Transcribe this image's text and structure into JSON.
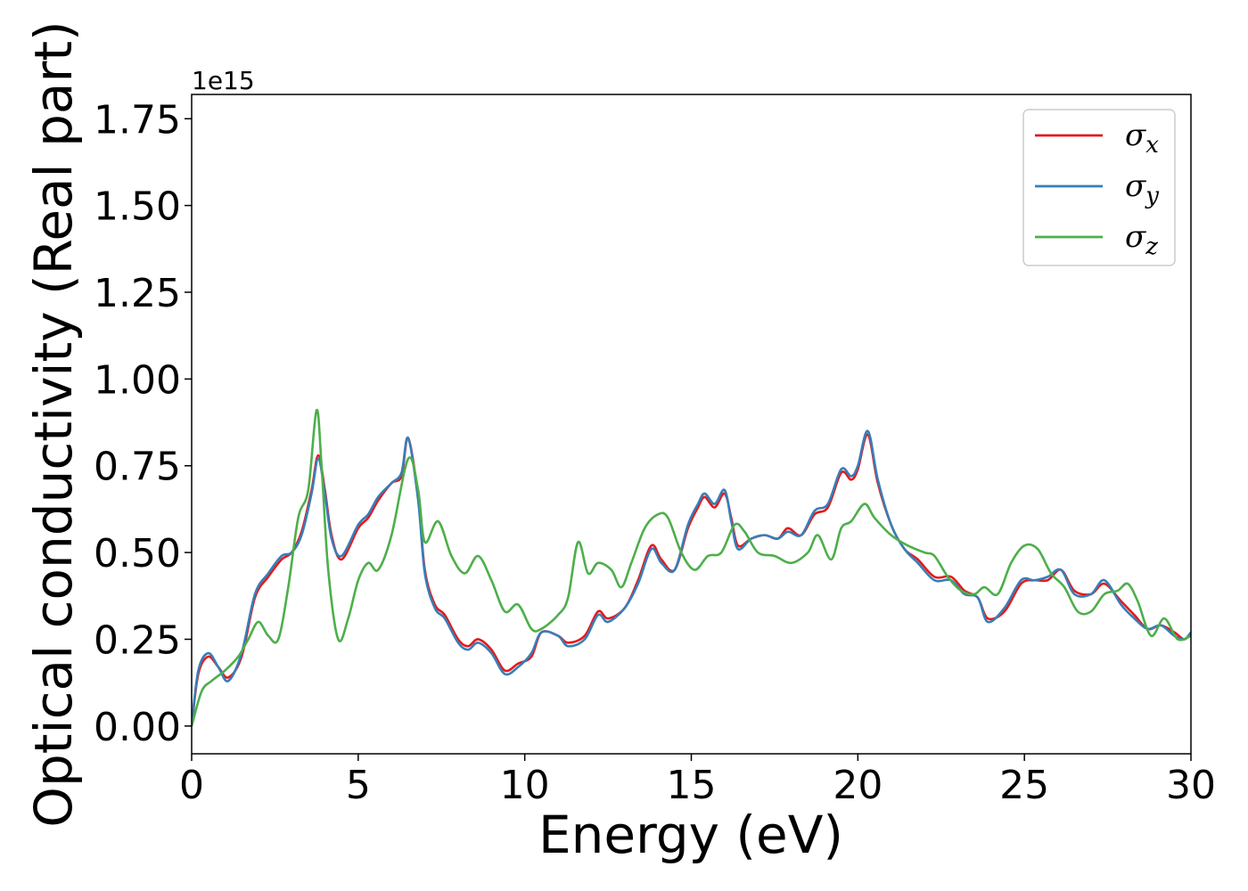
{
  "chart_data": {
    "type": "line",
    "xlabel": "Energy (eV)",
    "ylabel": "Optical conductivity (Real part)",
    "y_offset_label": "1e15",
    "xlim": [
      0,
      30
    ],
    "ylim": [
      -0.08,
      1.82
    ],
    "xticks": [
      0,
      5,
      10,
      15,
      20,
      25,
      30
    ],
    "xtick_labels": [
      "0",
      "5",
      "10",
      "15",
      "20",
      "25",
      "30"
    ],
    "yticks": [
      0.0,
      0.25,
      0.5,
      0.75,
      1.0,
      1.25,
      1.5,
      1.75
    ],
    "ytick_labels": [
      "0.00",
      "0.25",
      "0.50",
      "0.75",
      "1.00",
      "1.25",
      "1.50",
      "1.75"
    ],
    "grid": false,
    "legend_position": "top-right",
    "series": [
      {
        "name": "σx",
        "legend_base": "σ",
        "legend_sub": "x",
        "color": "#e41a1c",
        "points": [
          [
            0,
            0
          ],
          [
            0.2,
            0.15
          ],
          [
            0.5,
            0.2
          ],
          [
            0.8,
            0.17
          ],
          [
            1.1,
            0.14
          ],
          [
            1.5,
            0.2
          ],
          [
            1.9,
            0.37
          ],
          [
            2.3,
            0.43
          ],
          [
            2.7,
            0.48
          ],
          [
            3.0,
            0.5
          ],
          [
            3.3,
            0.56
          ],
          [
            3.6,
            0.68
          ],
          [
            3.8,
            0.78
          ],
          [
            4.0,
            0.68
          ],
          [
            4.2,
            0.55
          ],
          [
            4.5,
            0.48
          ],
          [
            5.0,
            0.57
          ],
          [
            5.3,
            0.6
          ],
          [
            5.6,
            0.65
          ],
          [
            6.0,
            0.7
          ],
          [
            6.3,
            0.72
          ],
          [
            6.5,
            0.83
          ],
          [
            6.8,
            0.66
          ],
          [
            7.0,
            0.45
          ],
          [
            7.3,
            0.35
          ],
          [
            7.6,
            0.32
          ],
          [
            8.0,
            0.25
          ],
          [
            8.3,
            0.23
          ],
          [
            8.6,
            0.25
          ],
          [
            9.0,
            0.22
          ],
          [
            9.4,
            0.16
          ],
          [
            9.8,
            0.18
          ],
          [
            10.2,
            0.2
          ],
          [
            10.5,
            0.27
          ],
          [
            11.0,
            0.26
          ],
          [
            11.3,
            0.24
          ],
          [
            11.8,
            0.26
          ],
          [
            12.2,
            0.33
          ],
          [
            12.5,
            0.31
          ],
          [
            13.0,
            0.34
          ],
          [
            13.4,
            0.42
          ],
          [
            13.8,
            0.52
          ],
          [
            14.1,
            0.48
          ],
          [
            14.5,
            0.45
          ],
          [
            14.9,
            0.57
          ],
          [
            15.2,
            0.63
          ],
          [
            15.4,
            0.66
          ],
          [
            15.7,
            0.63
          ],
          [
            16.0,
            0.67
          ],
          [
            16.2,
            0.6
          ],
          [
            16.4,
            0.52
          ],
          [
            16.8,
            0.54
          ],
          [
            17.2,
            0.55
          ],
          [
            17.6,
            0.54
          ],
          [
            17.9,
            0.57
          ],
          [
            18.3,
            0.55
          ],
          [
            18.7,
            0.61
          ],
          [
            19.1,
            0.63
          ],
          [
            19.5,
            0.73
          ],
          [
            19.8,
            0.71
          ],
          [
            20.0,
            0.74
          ],
          [
            20.3,
            0.84
          ],
          [
            20.6,
            0.7
          ],
          [
            21.0,
            0.58
          ],
          [
            21.4,
            0.51
          ],
          [
            21.8,
            0.48
          ],
          [
            22.3,
            0.43
          ],
          [
            22.8,
            0.43
          ],
          [
            23.2,
            0.39
          ],
          [
            23.6,
            0.37
          ],
          [
            23.9,
            0.31
          ],
          [
            24.4,
            0.33
          ],
          [
            24.9,
            0.41
          ],
          [
            25.3,
            0.42
          ],
          [
            25.7,
            0.42
          ],
          [
            26.1,
            0.45
          ],
          [
            26.5,
            0.39
          ],
          [
            27.0,
            0.38
          ],
          [
            27.4,
            0.41
          ],
          [
            27.9,
            0.36
          ],
          [
            28.3,
            0.32
          ],
          [
            28.7,
            0.28
          ],
          [
            29.1,
            0.29
          ],
          [
            29.5,
            0.27
          ],
          [
            29.8,
            0.25
          ],
          [
            30.0,
            0.27
          ]
        ]
      },
      {
        "name": "σy",
        "legend_base": "σ",
        "legend_sub": "y",
        "color": "#377eb8",
        "points": [
          [
            0,
            0
          ],
          [
            0.2,
            0.16
          ],
          [
            0.5,
            0.21
          ],
          [
            0.8,
            0.17
          ],
          [
            1.1,
            0.13
          ],
          [
            1.5,
            0.21
          ],
          [
            1.9,
            0.38
          ],
          [
            2.3,
            0.44
          ],
          [
            2.7,
            0.49
          ],
          [
            3.0,
            0.5
          ],
          [
            3.3,
            0.55
          ],
          [
            3.6,
            0.67
          ],
          [
            3.8,
            0.77
          ],
          [
            4.0,
            0.67
          ],
          [
            4.2,
            0.54
          ],
          [
            4.5,
            0.49
          ],
          [
            5.0,
            0.58
          ],
          [
            5.3,
            0.61
          ],
          [
            5.6,
            0.66
          ],
          [
            6.0,
            0.7
          ],
          [
            6.3,
            0.73
          ],
          [
            6.5,
            0.83
          ],
          [
            6.8,
            0.65
          ],
          [
            7.0,
            0.44
          ],
          [
            7.3,
            0.34
          ],
          [
            7.6,
            0.31
          ],
          [
            8.0,
            0.24
          ],
          [
            8.3,
            0.22
          ],
          [
            8.6,
            0.24
          ],
          [
            9.0,
            0.21
          ],
          [
            9.4,
            0.15
          ],
          [
            9.8,
            0.17
          ],
          [
            10.2,
            0.21
          ],
          [
            10.5,
            0.27
          ],
          [
            11.0,
            0.26
          ],
          [
            11.3,
            0.23
          ],
          [
            11.8,
            0.25
          ],
          [
            12.2,
            0.32
          ],
          [
            12.5,
            0.3
          ],
          [
            13.0,
            0.34
          ],
          [
            13.4,
            0.41
          ],
          [
            13.8,
            0.51
          ],
          [
            14.1,
            0.47
          ],
          [
            14.5,
            0.45
          ],
          [
            14.9,
            0.58
          ],
          [
            15.2,
            0.64
          ],
          [
            15.4,
            0.67
          ],
          [
            15.7,
            0.64
          ],
          [
            16.0,
            0.68
          ],
          [
            16.2,
            0.59
          ],
          [
            16.4,
            0.51
          ],
          [
            16.8,
            0.54
          ],
          [
            17.2,
            0.55
          ],
          [
            17.6,
            0.54
          ],
          [
            17.9,
            0.56
          ],
          [
            18.3,
            0.55
          ],
          [
            18.7,
            0.62
          ],
          [
            19.1,
            0.64
          ],
          [
            19.5,
            0.74
          ],
          [
            19.8,
            0.72
          ],
          [
            20.0,
            0.75
          ],
          [
            20.3,
            0.85
          ],
          [
            20.6,
            0.71
          ],
          [
            21.0,
            0.58
          ],
          [
            21.4,
            0.51
          ],
          [
            21.8,
            0.47
          ],
          [
            22.3,
            0.42
          ],
          [
            22.8,
            0.42
          ],
          [
            23.2,
            0.38
          ],
          [
            23.6,
            0.37
          ],
          [
            23.9,
            0.3
          ],
          [
            24.4,
            0.34
          ],
          [
            24.9,
            0.42
          ],
          [
            25.3,
            0.42
          ],
          [
            25.7,
            0.43
          ],
          [
            26.1,
            0.45
          ],
          [
            26.5,
            0.38
          ],
          [
            27.0,
            0.38
          ],
          [
            27.4,
            0.42
          ],
          [
            27.9,
            0.35
          ],
          [
            28.3,
            0.31
          ],
          [
            28.7,
            0.28
          ],
          [
            29.1,
            0.29
          ],
          [
            29.5,
            0.26
          ],
          [
            29.8,
            0.25
          ],
          [
            30.0,
            0.27
          ]
        ]
      },
      {
        "name": "σz",
        "legend_base": "σ",
        "legend_sub": "z",
        "color": "#4daf4a",
        "points": [
          [
            0,
            0
          ],
          [
            0.3,
            0.1
          ],
          [
            0.6,
            0.13
          ],
          [
            1.0,
            0.16
          ],
          [
            1.4,
            0.2
          ],
          [
            1.7,
            0.25
          ],
          [
            2.0,
            0.3
          ],
          [
            2.3,
            0.26
          ],
          [
            2.6,
            0.25
          ],
          [
            2.9,
            0.4
          ],
          [
            3.2,
            0.6
          ],
          [
            3.5,
            0.68
          ],
          [
            3.75,
            0.91
          ],
          [
            3.9,
            0.75
          ],
          [
            4.1,
            0.45
          ],
          [
            4.4,
            0.25
          ],
          [
            4.7,
            0.31
          ],
          [
            5.0,
            0.42
          ],
          [
            5.3,
            0.47
          ],
          [
            5.6,
            0.45
          ],
          [
            6.0,
            0.55
          ],
          [
            6.5,
            0.77
          ],
          [
            6.8,
            0.68
          ],
          [
            7.0,
            0.53
          ],
          [
            7.4,
            0.59
          ],
          [
            7.8,
            0.49
          ],
          [
            8.2,
            0.44
          ],
          [
            8.6,
            0.49
          ],
          [
            9.0,
            0.42
          ],
          [
            9.4,
            0.33
          ],
          [
            9.8,
            0.35
          ],
          [
            10.2,
            0.28
          ],
          [
            10.5,
            0.28
          ],
          [
            11.0,
            0.32
          ],
          [
            11.3,
            0.37
          ],
          [
            11.6,
            0.53
          ],
          [
            11.9,
            0.44
          ],
          [
            12.2,
            0.47
          ],
          [
            12.6,
            0.45
          ],
          [
            12.9,
            0.4
          ],
          [
            13.2,
            0.47
          ],
          [
            13.6,
            0.57
          ],
          [
            14.0,
            0.61
          ],
          [
            14.3,
            0.6
          ],
          [
            14.7,
            0.5
          ],
          [
            15.1,
            0.45
          ],
          [
            15.5,
            0.49
          ],
          [
            15.9,
            0.5
          ],
          [
            16.3,
            0.58
          ],
          [
            16.6,
            0.56
          ],
          [
            17.0,
            0.5
          ],
          [
            17.5,
            0.49
          ],
          [
            18.0,
            0.47
          ],
          [
            18.5,
            0.5
          ],
          [
            18.8,
            0.55
          ],
          [
            19.2,
            0.48
          ],
          [
            19.5,
            0.57
          ],
          [
            19.8,
            0.59
          ],
          [
            20.2,
            0.64
          ],
          [
            20.5,
            0.6
          ],
          [
            21.0,
            0.55
          ],
          [
            21.5,
            0.52
          ],
          [
            22.0,
            0.5
          ],
          [
            22.3,
            0.49
          ],
          [
            22.7,
            0.43
          ],
          [
            23.1,
            0.39
          ],
          [
            23.5,
            0.38
          ],
          [
            23.8,
            0.4
          ],
          [
            24.2,
            0.38
          ],
          [
            24.6,
            0.47
          ],
          [
            25.0,
            0.52
          ],
          [
            25.4,
            0.51
          ],
          [
            25.8,
            0.44
          ],
          [
            26.2,
            0.4
          ],
          [
            26.6,
            0.33
          ],
          [
            27.0,
            0.33
          ],
          [
            27.4,
            0.38
          ],
          [
            27.8,
            0.39
          ],
          [
            28.1,
            0.41
          ],
          [
            28.4,
            0.36
          ],
          [
            28.8,
            0.26
          ],
          [
            29.2,
            0.31
          ],
          [
            29.6,
            0.25
          ],
          [
            30.0,
            0.26
          ]
        ]
      }
    ]
  }
}
